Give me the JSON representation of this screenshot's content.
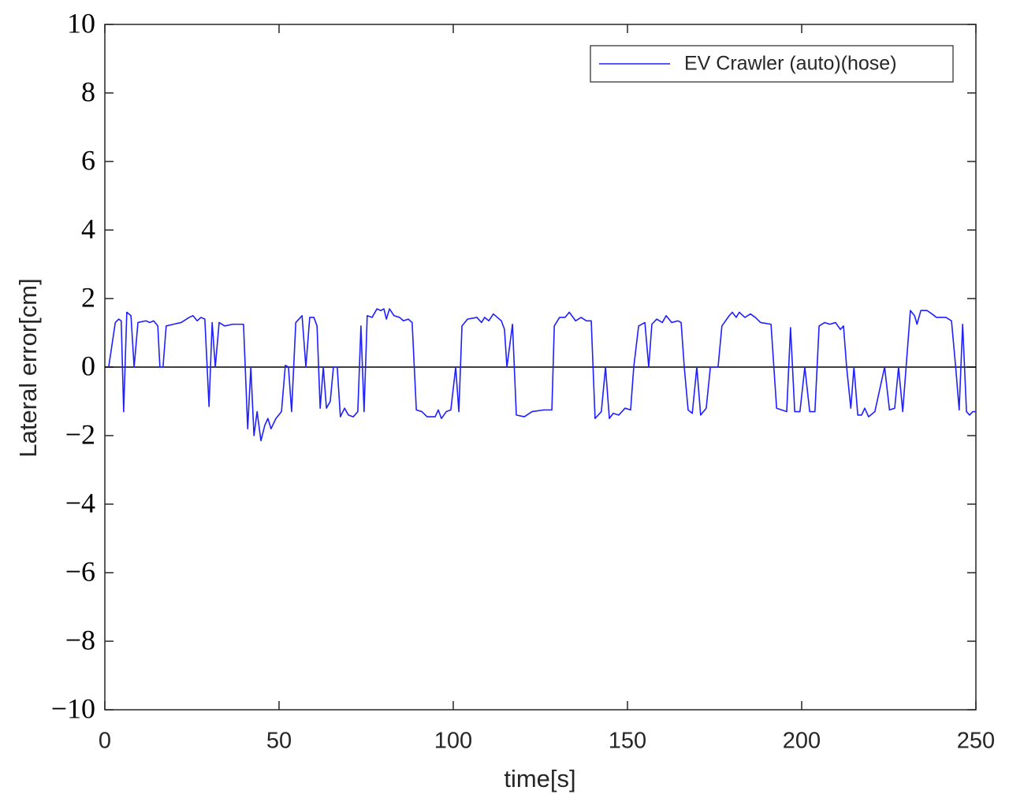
{
  "chart_data": {
    "type": "line",
    "xlabel": "time[s]",
    "ylabel": "Lateral error[cm]",
    "legend": "upper right",
    "hline": {
      "value": 0,
      "color": "#000000"
    },
    "xlim": [
      0,
      250
    ],
    "xticks": [
      0,
      50,
      100,
      150,
      200,
      250
    ],
    "ylim": [
      -10,
      10
    ],
    "yticks": [
      {
        "value": -10,
        "label": "−10"
      },
      {
        "value": -8,
        "label": "−8"
      },
      {
        "value": -6,
        "label": "−6"
      },
      {
        "value": -4,
        "label": "−4"
      },
      {
        "value": -2,
        "label": "−2"
      },
      0,
      2,
      4,
      6,
      8,
      10
    ],
    "x": [
      1.1,
      3,
      4,
      4.7,
      5.4,
      6.3,
      7.5,
      8.4,
      9.5,
      11.8,
      12.9,
      14,
      15.2,
      15.8,
      16.7,
      17.6,
      19.7,
      21.9,
      24.2,
      25.3,
      26.5,
      27.6,
      28.7,
      29.9,
      30.8,
      31.7,
      32.8,
      34.4,
      36.7,
      39.8,
      41,
      41.9,
      42.8,
      43.7,
      44.8,
      45.9,
      46.8,
      47.7,
      49.1,
      50.7,
      51.8,
      52.7,
      53.6,
      54.8,
      56.6,
      57.7,
      58.8,
      60,
      60.9,
      61.8,
      62.7,
      63.6,
      64.7,
      65.6,
      66.7,
      67.6,
      68.8,
      69.9,
      71.3,
      72.6,
      73.5,
      74.4,
      75.3,
      76.7,
      78.1,
      79.2,
      80.1,
      80.8,
      81.7,
      83,
      84.6,
      85.7,
      87.1,
      88.2,
      89.4,
      91,
      92.5,
      94.8,
      95.7,
      96.6,
      98,
      99.3,
      100.7,
      101.6,
      102.5,
      104.1,
      106.8,
      108.1,
      109,
      110.2,
      111.5,
      113.8,
      114.7,
      115.4,
      117,
      118.1,
      120.4,
      122.6,
      126,
      128.3,
      129,
      130.5,
      132.1,
      133.3,
      135.1,
      136.7,
      138.2,
      139.6,
      140.7,
      142.5,
      143.7,
      144.8,
      145.9,
      147.5,
      149.3,
      150.9,
      151.8,
      153.2,
      155,
      156.1,
      157,
      158.4,
      160,
      161.1,
      162.7,
      164.5,
      165.4,
      166.3,
      167.4,
      168.6,
      169.9,
      171,
      172.6,
      173.8,
      174.7,
      176,
      177.1,
      179.2,
      180.1,
      181.2,
      182.1,
      183.7,
      185.3,
      186.7,
      188.2,
      191.2,
      192.8,
      195.7,
      196.8,
      198,
      199.5,
      200.9,
      202.3,
      203.8,
      205,
      206.6,
      208.1,
      209.7,
      211.1,
      212,
      212.9,
      214.1,
      215,
      216.1,
      217.2,
      218.1,
      219.2,
      221,
      223.8,
      225.2,
      226.7,
      227.8,
      229,
      231.2,
      232.4,
      233.1,
      234.2,
      236,
      237.4,
      238.7,
      241.4,
      243,
      244.2,
      245.2,
      246.2,
      247.3,
      248.2,
      249.1,
      250
    ],
    "series": [
      {
        "name": "EV Crawler (auto)(hose)",
        "color": "#1f1fff",
        "values": [
          0,
          1.3,
          1.4,
          1.35,
          -1.3,
          1.6,
          1.5,
          0,
          1.3,
          1.35,
          1.3,
          1.35,
          1.2,
          0,
          0,
          1.2,
          1.25,
          1.3,
          1.45,
          1.5,
          1.35,
          1.45,
          1.4,
          -1.15,
          1.3,
          0,
          1.3,
          1.2,
          1.25,
          1.25,
          -1.8,
          0,
          -2.0,
          -1.3,
          -2.15,
          -1.7,
          -1.5,
          -1.8,
          -1.5,
          -1.3,
          0.05,
          0,
          -1.3,
          1.3,
          1.5,
          0,
          1.45,
          1.45,
          1.2,
          -1.2,
          0,
          -1.2,
          -1.0,
          0,
          0,
          -1.45,
          -1.2,
          -1.4,
          -1.45,
          -1.3,
          1.2,
          -1.3,
          1.5,
          1.45,
          1.7,
          1.65,
          1.7,
          1.4,
          1.7,
          1.5,
          1.45,
          1.35,
          1.4,
          1.3,
          -1.25,
          -1.3,
          -1.45,
          -1.45,
          -1.25,
          -1.5,
          -1.3,
          -1.25,
          0,
          -1.3,
          1.2,
          1.4,
          1.45,
          1.3,
          1.45,
          1.35,
          1.55,
          1.35,
          1.1,
          0,
          1.25,
          -1.4,
          -1.45,
          -1.3,
          -1.25,
          -1.25,
          1.2,
          1.45,
          1.45,
          1.6,
          1.35,
          1.45,
          1.35,
          1.35,
          -1.5,
          -1.3,
          0,
          -1.5,
          -1.35,
          -1.4,
          -1.2,
          -1.25,
          0,
          1.2,
          1.3,
          0,
          1.25,
          1.4,
          1.3,
          1.5,
          1.3,
          1.35,
          1.3,
          0,
          -1.25,
          -1.35,
          0,
          -1.4,
          -1.2,
          0,
          0,
          0,
          1.2,
          1.5,
          1.6,
          1.45,
          1.6,
          1.45,
          1.55,
          1.45,
          1.3,
          1.25,
          -1.2,
          -1.3,
          1.15,
          -1.3,
          -1.3,
          0,
          -1.3,
          -1.3,
          1.2,
          1.3,
          1.25,
          1.3,
          1.1,
          1.2,
          0,
          -1.2,
          0,
          -1.4,
          -1.4,
          -1.2,
          -1.45,
          -1.3,
          0,
          -1.25,
          -1.2,
          0,
          -1.3,
          1.65,
          1.5,
          1.25,
          1.65,
          1.65,
          1.55,
          1.45,
          1.45,
          1.35,
          0,
          -1.25,
          1.25,
          -1.3,
          -1.4,
          -1.3,
          -1.3
        ]
      }
    ]
  }
}
